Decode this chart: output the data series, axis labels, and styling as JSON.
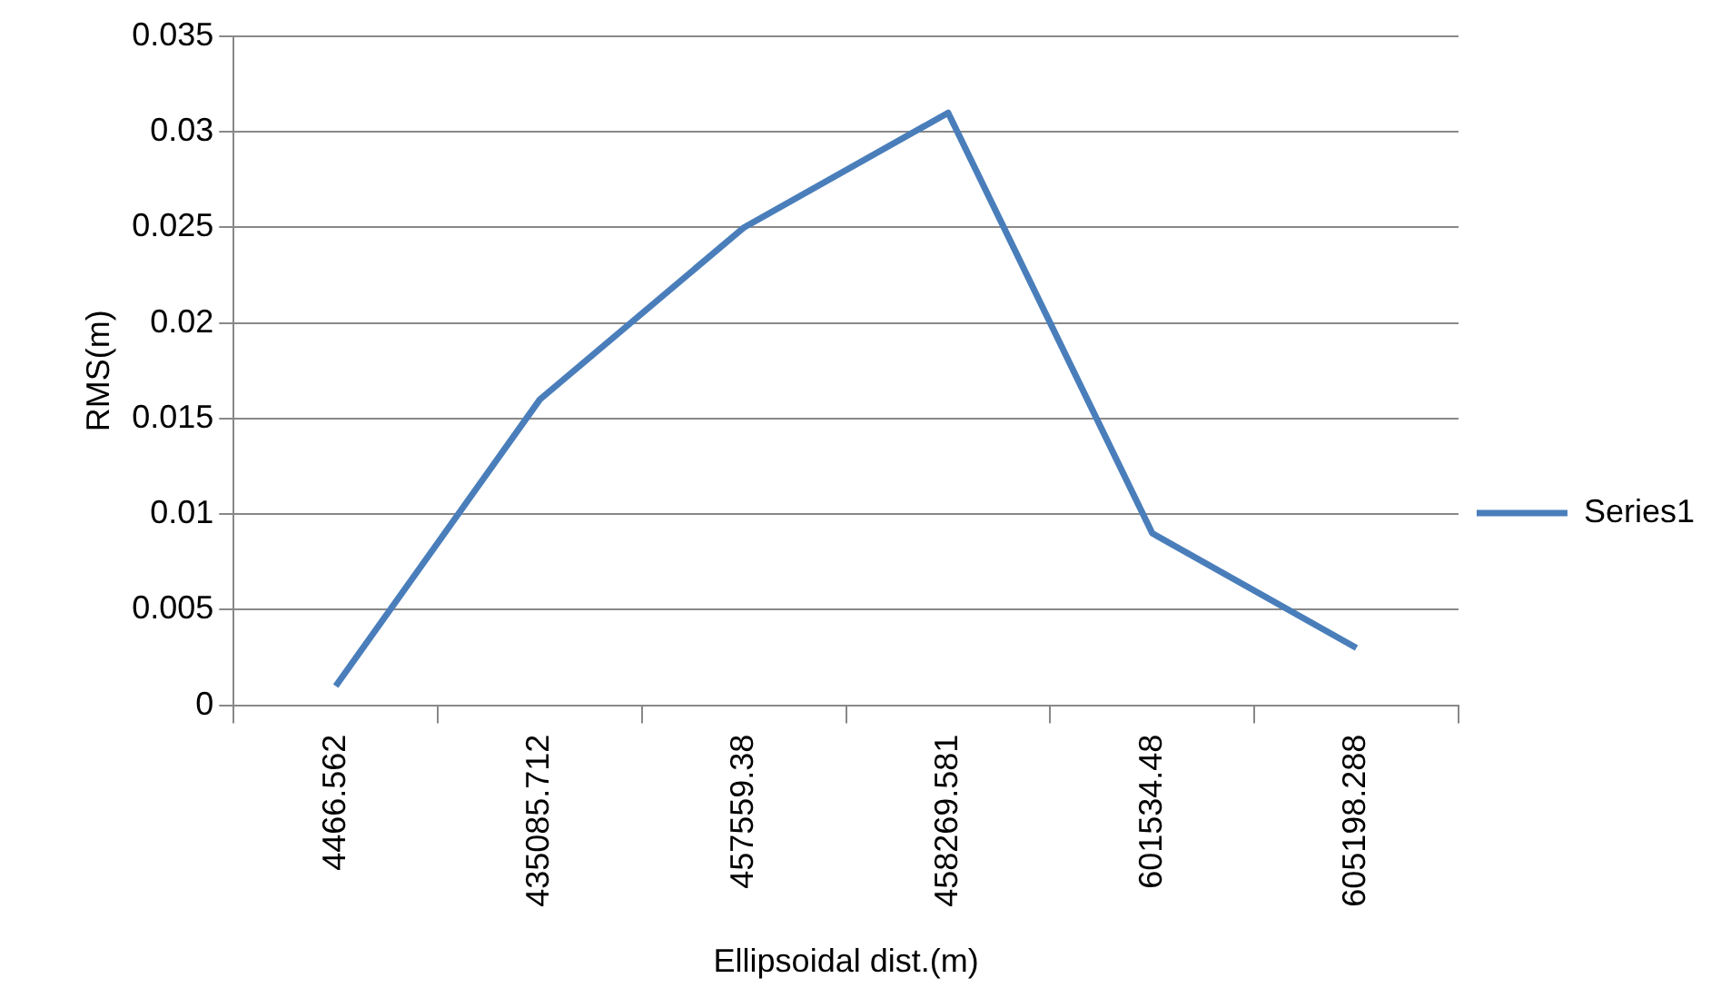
{
  "chart_data": {
    "type": "line",
    "xlabel": "Ellipsoidal dist.(m)",
    "ylabel": "RMS(m)",
    "categories": [
      "4466.562",
      "435085.712",
      "457559.38",
      "458269.581",
      "601534.48",
      "605198.288"
    ],
    "series": [
      {
        "name": "Series1",
        "color": "#4a7ebb",
        "values": [
          0.001,
          0.016,
          0.025,
          0.031,
          0.009,
          0.003
        ]
      }
    ],
    "ylim": [
      0,
      0.035
    ],
    "yticks": [
      0,
      0.005,
      0.01,
      0.015,
      0.02,
      0.025,
      0.03,
      0.035
    ],
    "grid": "y",
    "legend": "right",
    "marker": "none",
    "line_style": "solid"
  }
}
